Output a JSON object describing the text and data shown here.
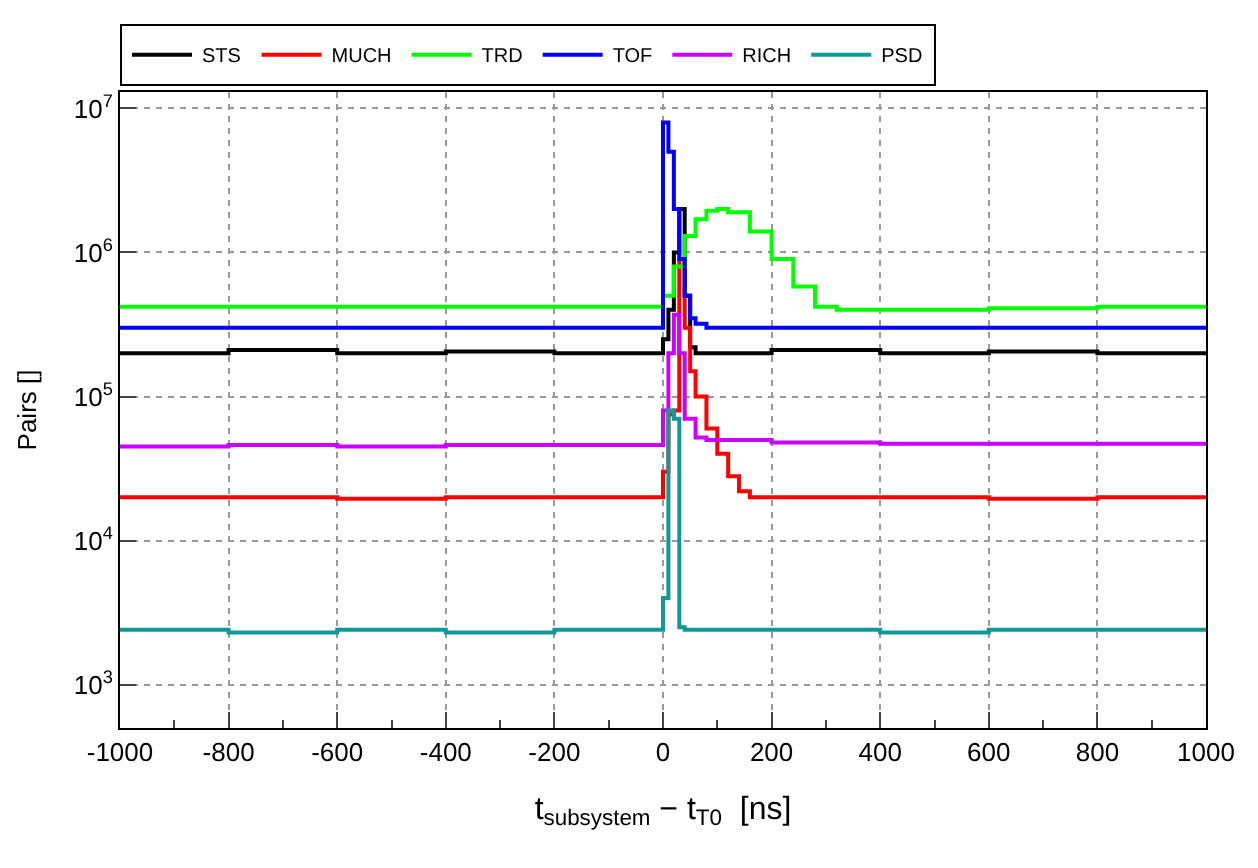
{
  "chart_data": {
    "type": "step",
    "xlabel": "t$_{subsystem}$ − t$_{T0}$  [ns]",
    "ylabel": "Pairs []",
    "xlim": [
      -1000,
      1000
    ],
    "xticks": [
      -1000,
      -800,
      -600,
      -400,
      -200,
      0,
      200,
      400,
      600,
      800,
      1000
    ],
    "ylim": [
      500,
      13000000
    ],
    "yticks": [
      {
        "value": 1000,
        "label": "10$^{3}$"
      },
      {
        "value": 10000,
        "label": "10$^{4}$"
      },
      {
        "value": 100000,
        "label": "10$^{5}$"
      },
      {
        "value": 1000000,
        "label": "10$^{6}$"
      },
      {
        "value": 10000000,
        "label": "10$^{7}$"
      }
    ],
    "log": "y",
    "grid": true,
    "legend": "top",
    "line_style": "solid",
    "marker": "none",
    "series": [
      {
        "name": "STS",
        "color": "#000000",
        "x": [
          -1000,
          -800,
          -600,
          -400,
          -200,
          -10,
          0,
          10,
          20,
          30,
          40,
          50,
          60,
          200,
          400,
          600,
          800,
          1000
        ],
        "values": [
          200000,
          210000,
          200000,
          205000,
          200000,
          200000,
          250000,
          400000,
          1000000,
          2000000,
          500000,
          220000,
          200000,
          210000,
          200000,
          205000,
          200000,
          200000
        ]
      },
      {
        "name": "MUCH",
        "color": "#ff0000",
        "x": [
          -1000,
          -800,
          -600,
          -400,
          -200,
          -10,
          0,
          10,
          20,
          30,
          40,
          50,
          60,
          80,
          100,
          120,
          140,
          160,
          200,
          400,
          600,
          800,
          1000
        ],
        "values": [
          20000,
          20000,
          19500,
          20000,
          20000,
          20000,
          30000,
          75000,
          80000,
          900000,
          300000,
          150000,
          100000,
          60000,
          40000,
          28000,
          22000,
          20000,
          20000,
          20000,
          19500,
          20000,
          20000
        ]
      },
      {
        "name": "TRD",
        "color": "#00ff00",
        "x": [
          -1000,
          -800,
          -600,
          -400,
          -200,
          -10,
          0,
          20,
          40,
          60,
          80,
          100,
          120,
          160,
          200,
          240,
          280,
          320,
          400,
          600,
          800,
          1000
        ],
        "values": [
          420000,
          420000,
          420000,
          420000,
          420000,
          420000,
          500000,
          800000,
          1300000,
          1700000,
          1950000,
          2000000,
          1900000,
          1400000,
          900000,
          580000,
          420000,
          400000,
          400000,
          410000,
          420000,
          420000
        ]
      },
      {
        "name": "TOF",
        "color": "#0000ff",
        "x": [
          -1000,
          -800,
          -600,
          -400,
          -200,
          -10,
          0,
          10,
          20,
          30,
          40,
          50,
          60,
          80,
          200,
          400,
          600,
          800,
          1000
        ],
        "values": [
          300000,
          300000,
          300000,
          300000,
          300000,
          300000,
          8000000,
          5000000,
          2000000,
          900000,
          500000,
          350000,
          320000,
          300000,
          300000,
          300000,
          300000,
          300000,
          300000
        ]
      },
      {
        "name": "RICH",
        "color": "#cc00ff",
        "x": [
          -1000,
          -800,
          -600,
          -400,
          -200,
          -10,
          0,
          10,
          20,
          30,
          40,
          60,
          80,
          200,
          400,
          600,
          800,
          1000
        ],
        "values": [
          45000,
          46000,
          45000,
          46000,
          46000,
          46000,
          80000,
          200000,
          370000,
          200000,
          70000,
          52000,
          50000,
          48000,
          47000,
          47000,
          47000,
          47000
        ]
      },
      {
        "name": "PSD",
        "color": "#119999",
        "x": [
          -1000,
          -800,
          -600,
          -400,
          -200,
          -10,
          0,
          10,
          20,
          30,
          40,
          200,
          400,
          600,
          800,
          1000
        ],
        "values": [
          2400,
          2300,
          2400,
          2300,
          2400,
          2400,
          4000,
          80000,
          70000,
          2500,
          2400,
          2400,
          2300,
          2400,
          2400,
          2400
        ]
      }
    ]
  }
}
